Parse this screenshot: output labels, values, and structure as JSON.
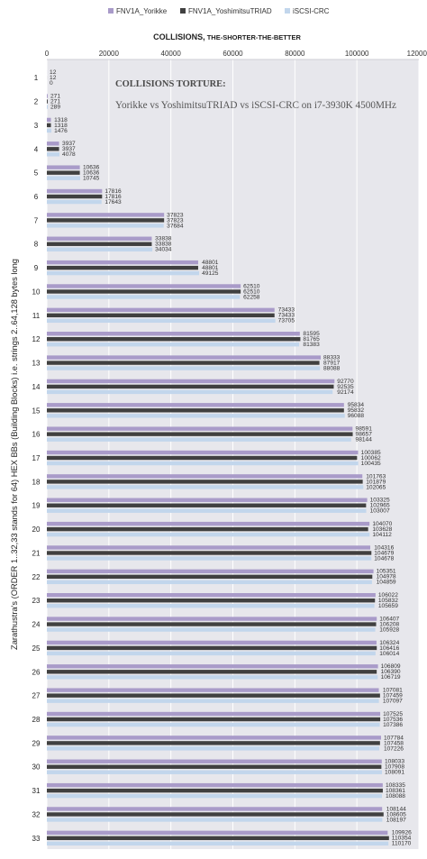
{
  "chart_data": {
    "type": "bar",
    "orientation": "horizontal",
    "title_main": "COLLISIONS,",
    "title_sub": " THE-SHORTER-THE-BETTER",
    "annotation_line1": "COLLISIONS TORTURE:",
    "annotation_line2": "Yorikke vs YoshimitsuTRIAD vs iSCSI-CRC on i7-3930K 4500MHz",
    "ylabel": "Zarathustra's (ORDER 1..32,33 stands for 64) HEX BBs (Building Blocks) i.e. strings 2..64,128 bytes long",
    "xlim": [
      0,
      120000
    ],
    "xticks": [
      "0",
      "20000",
      "40000",
      "60000",
      "80000",
      "100000",
      "120000"
    ],
    "grid": true,
    "legend_position": "top",
    "categories": [
      "1",
      "2",
      "3",
      "4",
      "5",
      "6",
      "7",
      "8",
      "9",
      "10",
      "11",
      "12",
      "13",
      "14",
      "15",
      "16",
      "17",
      "18",
      "19",
      "20",
      "21",
      "22",
      "23",
      "24",
      "25",
      "26",
      "27",
      "28",
      "29",
      "30",
      "31",
      "32",
      "33"
    ],
    "series": [
      {
        "name": "FNV1A_Yorikke",
        "color": "#a99bc9",
        "values": [
          12,
          271,
          1318,
          3937,
          10636,
          17816,
          37823,
          33838,
          48801,
          62510,
          73433,
          81595,
          88333,
          92770,
          95834,
          98591,
          100385,
          101763,
          103325,
          104070,
          104316,
          105351,
          106022,
          106407,
          106324,
          106809,
          107081,
          107525,
          107784,
          108033,
          108335,
          108144,
          109926
        ]
      },
      {
        "name": "FNV1A_YoshimitsuTRIAD",
        "color": "#404040",
        "values": [
          12,
          271,
          1318,
          3937,
          10636,
          17816,
          37823,
          33838,
          48801,
          62510,
          73433,
          81765,
          87917,
          92535,
          95832,
          98657,
          100062,
          101879,
          102965,
          103628,
          104679,
          104978,
          105832,
          106208,
          106416,
          106390,
          107459,
          107536,
          107458,
          107908,
          108361,
          108605,
          110354
        ]
      },
      {
        "name": "iSCSI-CRC",
        "color": "#c2d6ec",
        "values": [
          0,
          289,
          1476,
          4078,
          10745,
          17643,
          37684,
          34034,
          49125,
          62258,
          73705,
          81383,
          88088,
          92174,
          96088,
          98144,
          100435,
          102065,
          103007,
          104112,
          104678,
          104859,
          105659,
          105928,
          106014,
          106719,
          107097,
          107386,
          107226,
          108091,
          108088,
          108197,
          110170
        ]
      }
    ]
  }
}
